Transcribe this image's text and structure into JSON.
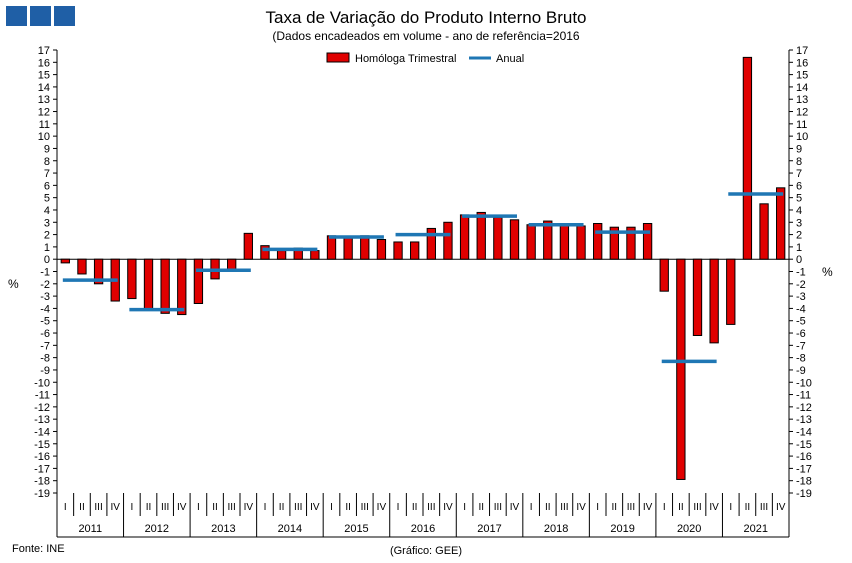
{
  "title": "Taxa de Variação do Produto Interno Bruto",
  "subtitle": "(Dados encadeados em volume - ano de referência=2016",
  "source": "Fonte: INE",
  "credit": "(Gráfico: GEE)",
  "colors": {
    "bar": "#e00000",
    "annual": "#1f77b4",
    "logo": "#1f5fa6"
  },
  "chart_data": {
    "type": "bar",
    "ylabel_left": "%",
    "ylabel_right": "%",
    "ylim": [
      -19,
      17
    ],
    "yticks": [
      17,
      16,
      15,
      14,
      13,
      12,
      11,
      10,
      9,
      8,
      7,
      6,
      5,
      4,
      3,
      2,
      1,
      0,
      -1,
      -2,
      -3,
      -4,
      -5,
      -6,
      -7,
      -8,
      -9,
      -10,
      -11,
      -12,
      -13,
      -14,
      -15,
      -16,
      -17,
      -18,
      -19
    ],
    "legend": {
      "position": "top-center",
      "entries": [
        "Homóloga Trimestral",
        "Anual"
      ]
    },
    "quarters": [
      "I",
      "II",
      "III",
      "IV"
    ],
    "years": [
      "2011",
      "2012",
      "2013",
      "2014",
      "2015",
      "2016",
      "2017",
      "2018",
      "2019",
      "2020",
      "2021"
    ],
    "series": [
      {
        "name": "Homóloga Trimestral",
        "type": "bar",
        "values": [
          -0.3,
          -1.2,
          -2.0,
          -3.4,
          -3.2,
          -4.1,
          -4.4,
          -4.5,
          -3.6,
          -1.6,
          -0.8,
          2.1,
          1.1,
          0.7,
          0.9,
          0.7,
          1.9,
          1.8,
          1.9,
          1.6,
          1.4,
          1.4,
          2.5,
          3.0,
          3.6,
          3.8,
          3.4,
          3.2,
          2.8,
          3.1,
          2.9,
          2.7,
          2.9,
          2.6,
          2.6,
          2.9,
          -2.6,
          -17.9,
          -6.2,
          -6.8,
          -5.3,
          16.4,
          4.5,
          5.8
        ]
      },
      {
        "name": "Anual",
        "type": "line",
        "values": [
          -1.7,
          -4.1,
          -0.9,
          0.8,
          1.8,
          2.0,
          3.5,
          2.8,
          2.2,
          -8.3,
          5.3
        ]
      }
    ]
  }
}
